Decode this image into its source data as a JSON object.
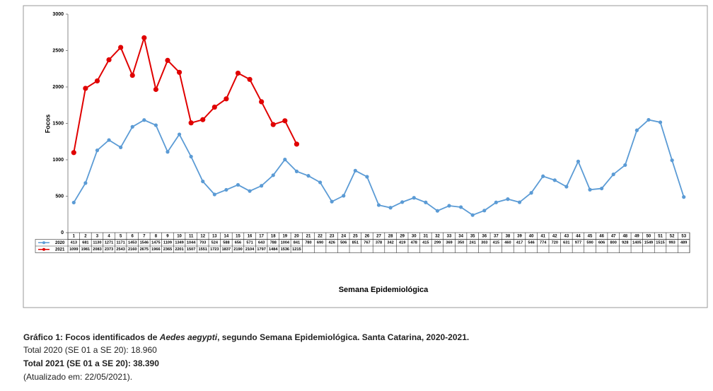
{
  "chart_data": {
    "type": "line",
    "y_label": "Focos",
    "x_label": "Semana Epidemiológica",
    "categories": [
      1,
      2,
      3,
      4,
      5,
      6,
      7,
      8,
      9,
      10,
      11,
      12,
      13,
      14,
      15,
      16,
      17,
      18,
      19,
      20,
      21,
      22,
      23,
      24,
      25,
      26,
      27,
      28,
      29,
      30,
      31,
      32,
      33,
      34,
      35,
      36,
      37,
      38,
      39,
      40,
      41,
      42,
      43,
      44,
      45,
      46,
      47,
      48,
      49,
      50,
      51,
      52,
      53
    ],
    "series": [
      {
        "name": "2020",
        "color": "#5b9bd5",
        "values": [
          413,
          681,
          1130,
          1271,
          1171,
          1453,
          1546,
          1475,
          1109,
          1349,
          1044,
          703,
          524,
          588,
          656,
          571,
          643,
          788,
          1004,
          841,
          780,
          690,
          426,
          506,
          851,
          767,
          378,
          342,
          419,
          478,
          415,
          299,
          369,
          350,
          241,
          303,
          415,
          460,
          417,
          546,
          774,
          720,
          631,
          977,
          590,
          606,
          800,
          928,
          1405,
          1549,
          1515,
          993,
          489
        ]
      },
      {
        "name": "2021",
        "color": "#e00000",
        "values": [
          1099,
          1981,
          2083,
          2373,
          2543,
          2160,
          2675,
          1966,
          2365,
          2201,
          1507,
          1551,
          1723,
          1837,
          2190,
          2104,
          1797,
          1484,
          1536,
          1215,
          null,
          null,
          null,
          null,
          null,
          null,
          null,
          null,
          null,
          null,
          null,
          null,
          null,
          null,
          null,
          null,
          null,
          null,
          null,
          null,
          null,
          null,
          null,
          null,
          null,
          null,
          null,
          null,
          null,
          null,
          null,
          null,
          null
        ]
      }
    ],
    "ylim": [
      0,
      3000
    ],
    "yticks": [
      0,
      500,
      1000,
      1500,
      2000,
      2500,
      3000
    ],
    "grid": false
  },
  "caption": {
    "title_start": "Gráfico 1: Focos identificados de ",
    "title_species": "Aedes aegypti",
    "title_end": ", segundo Semana Epidemiológica. Santa Catarina, 2020-2021.",
    "total_2020": "Total 2020 (SE 01 a SE 20): 18.960",
    "total_2021": "Total 2021 (SE 01 a SE 20): 38.390",
    "updated": "(Atualizado em: 22/05/2021)."
  }
}
